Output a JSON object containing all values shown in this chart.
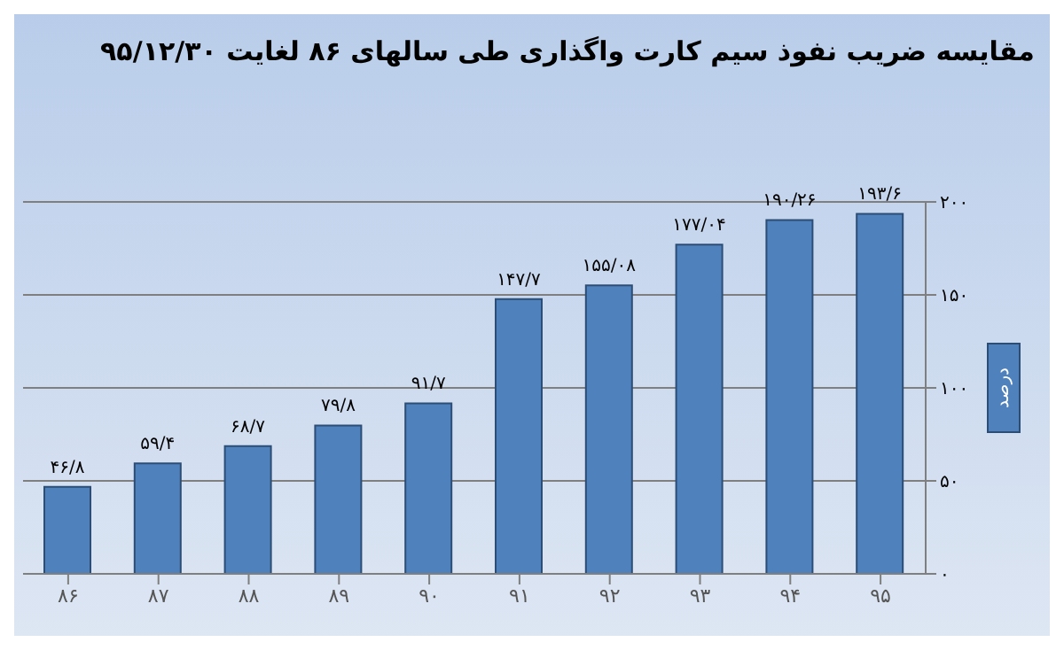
{
  "chart_data": {
    "type": "bar",
    "title": "مقایسه ضریب نفوذ سیم کارت واگذاری طی سالهای ۸۶ لغایت ۹۵/۱۲/۳۰",
    "ylabel": "درصد",
    "categories": [
      "۸۶",
      "۸۷",
      "۸۸",
      "۸۹",
      "۹۰",
      "۹۱",
      "۹۲",
      "۹۳",
      "۹۴",
      "۹۵"
    ],
    "values": [
      46.8,
      59.4,
      68.7,
      79.8,
      91.7,
      147.7,
      155.08,
      177.04,
      190.26,
      193.6
    ],
    "value_labels": [
      "۴۶/۸",
      "۵۹/۴",
      "۶۸/۷",
      "۷۹/۸",
      "۹۱/۷",
      "۱۴۷/۷",
      "۱۵۵/۰۸",
      "۱۷۷/۰۴",
      "۱۹۰/۲۶",
      "۱۹۳/۶"
    ],
    "color": "#4f81bd",
    "ylim": [
      0,
      200
    ],
    "yticks": [
      {
        "value": 0,
        "label": "۰"
      },
      {
        "value": 50,
        "label": "۵۰"
      },
      {
        "value": 100,
        "label": "۱۰۰"
      },
      {
        "value": 150,
        "label": "۱۵۰"
      },
      {
        "value": 200,
        "label": "۲۰۰"
      }
    ],
    "grid": "y"
  }
}
